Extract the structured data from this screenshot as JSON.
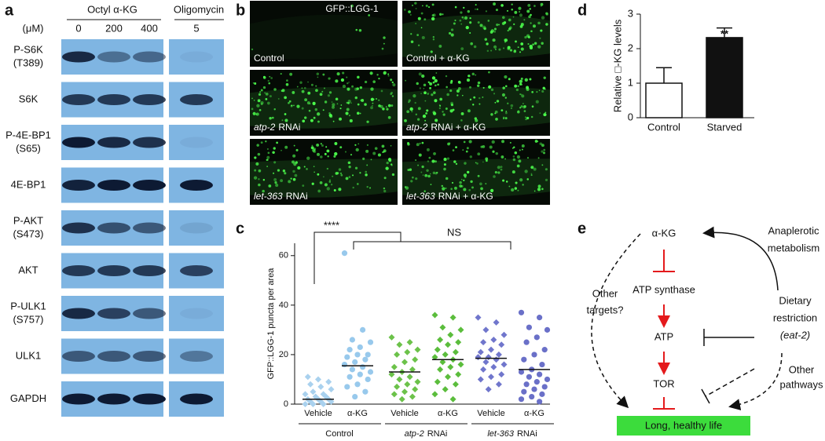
{
  "panel_labels": [
    "a",
    "b",
    "c",
    "d",
    "e"
  ],
  "blots": {
    "unit": "(μM)",
    "treatments": [
      {
        "label": "Octyl α-KG",
        "doses": [
          "0",
          "200",
          "400"
        ]
      },
      {
        "label": "Oligomycin",
        "doses": [
          "5"
        ]
      }
    ],
    "rows": [
      [
        "P-S6K",
        "(T389)"
      ],
      [
        "S6K"
      ],
      [
        "P-4E-BP1",
        "(S65)"
      ],
      [
        "4E-BP1"
      ],
      [
        "P-AKT",
        "(S473)"
      ],
      [
        "AKT"
      ],
      [
        "P-ULK1",
        "(S757)"
      ],
      [
        "ULK1"
      ],
      [
        "GAPDH"
      ]
    ]
  },
  "images": {
    "channel": "GFP::LGG-1",
    "panels": [
      {
        "text": "Control"
      },
      {
        "text": "Control + α-KG"
      },
      {
        "gene": "atp-2",
        "text": "RNAi"
      },
      {
        "gene": "atp-2",
        "text": "RNAi + α-KG"
      },
      {
        "gene": "let-363",
        "text": "RNAi"
      },
      {
        "gene": "let-363",
        "text": "RNAi + α-KG"
      }
    ]
  },
  "chart_data": [
    {
      "type": "strip",
      "ylabel": "GFP::LGG-1 puncta per area",
      "categories": [
        "Vehicle",
        "α-KG",
        "Vehicle",
        "α-KG",
        "Vehicle",
        "α-KG"
      ],
      "groups": [
        {
          "text": "Control"
        },
        {
          "gene": "atp-2",
          "text": "RNAi"
        },
        {
          "gene": "let-363",
          "text": "RNAi"
        }
      ],
      "ylim": [
        0,
        65
      ],
      "yticks": [
        0,
        20,
        40,
        60
      ],
      "annotations": [
        "****",
        "NS"
      ],
      "series": [
        {
          "color": "#a9d1ee",
          "marker": "diamond",
          "mean": 2,
          "values": [
            0,
            0,
            0,
            1,
            1,
            1,
            2,
            2,
            2,
            3,
            3,
            4,
            4,
            5,
            6,
            7,
            8,
            9,
            10,
            11
          ]
        },
        {
          "color": "#98c9ec",
          "marker": "circle",
          "mean": 15.5,
          "values": [
            61,
            30,
            26,
            25,
            23,
            22,
            20,
            20,
            19,
            18,
            17,
            16,
            15,
            14,
            13,
            12,
            11,
            10,
            8,
            7,
            5,
            3
          ]
        },
        {
          "color": "#6cc24a",
          "marker": "diamond",
          "mean": 13,
          "values": [
            27,
            25,
            24,
            22,
            21,
            20,
            18,
            17,
            15,
            14,
            13,
            12,
            11,
            10,
            9,
            8,
            7,
            6,
            5,
            4,
            3,
            2
          ]
        },
        {
          "color": "#5bbd3c",
          "marker": "diamond",
          "mean": 18,
          "values": [
            36,
            35,
            31,
            30,
            28,
            26,
            25,
            24,
            22,
            21,
            20,
            19,
            18,
            17,
            16,
            15,
            14,
            12,
            11,
            9,
            8,
            6,
            4,
            2
          ]
        },
        {
          "color": "#7076cc",
          "marker": "diamond",
          "mean": 18.5,
          "values": [
            35,
            33,
            30,
            28,
            26,
            25,
            24,
            22,
            21,
            20,
            19,
            19,
            18,
            17,
            16,
            15,
            14,
            12,
            11,
            10,
            8,
            6
          ]
        },
        {
          "color": "#6a70c8",
          "marker": "circle",
          "mean": 14,
          "values": [
            37,
            35,
            31,
            30,
            27,
            25,
            22,
            20,
            18,
            16,
            14,
            13,
            12,
            11,
            10,
            9,
            8,
            7,
            6,
            5,
            4,
            3,
            2,
            1
          ]
        }
      ]
    },
    {
      "type": "bar",
      "ylabel": "Relative □-KG levels",
      "categories": [
        "Control",
        "Starved"
      ],
      "values": [
        1.0,
        2.32
      ],
      "errors": [
        0.45,
        0.28
      ],
      "colors": [
        "#ffffff",
        "#111111"
      ],
      "ylim": [
        0,
        3
      ],
      "yticks": [
        0,
        1,
        2,
        3
      ],
      "annotations": [
        {
          "text": "**",
          "category": 1
        }
      ]
    }
  ],
  "diagram": {
    "nodes": {
      "akg": "α-KG",
      "atp_synthase": "ATP synthase",
      "atp": "ATP",
      "tor": "TOR",
      "outcome": "Long, healthy life",
      "dr": [
        "Dietary",
        "restriction",
        "(eat-2)"
      ]
    },
    "labels": {
      "anaplerotic": [
        "Anaplerotic",
        "metabolism"
      ],
      "other_targets": [
        "Other",
        "targets?"
      ],
      "other_pathways": [
        "Other",
        "pathways"
      ]
    }
  }
}
